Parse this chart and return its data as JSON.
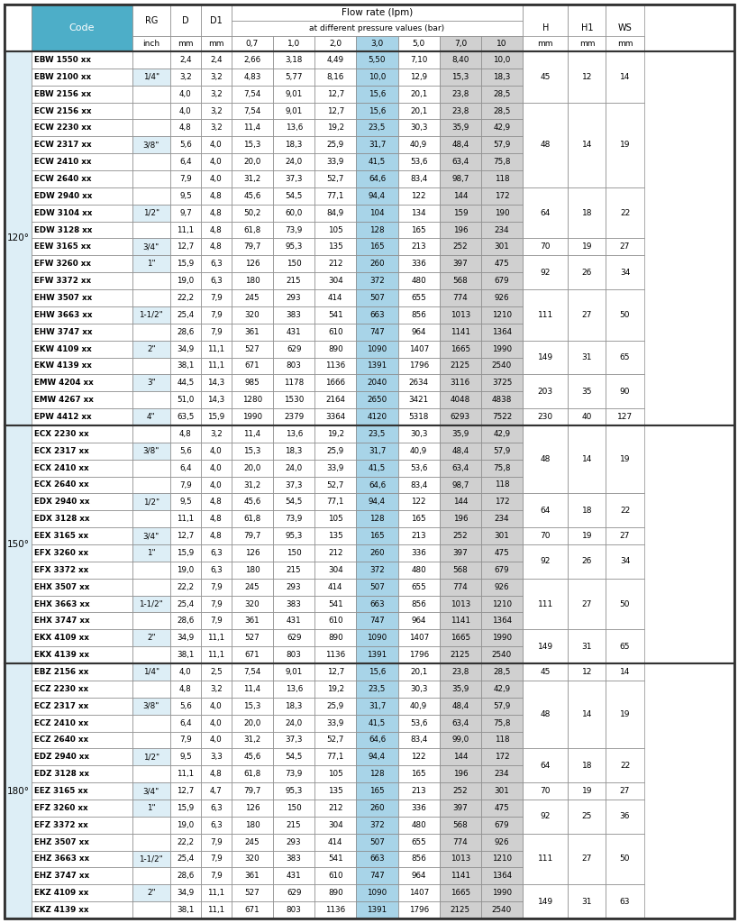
{
  "header_bg": "#4daec8",
  "header_text_color": "#ffffff",
  "blue_col_bg": "#a8d4e8",
  "gray_col_bg": "#d0d0d0",
  "light_blue_bg": "#ddeef6",
  "white": "#ffffff",
  "black": "#000000",
  "border_light": "#aaaaaa",
  "border_dark": "#444444",
  "sections": [
    {
      "angle": "120°",
      "groups": [
        {
          "rg": "1/4\"",
          "H": "45",
          "H1": "12",
          "WS": "14",
          "rows": [
            [
              "EBW 1550 xx",
              "",
              "2,4",
              "2,4",
              "2,66",
              "3,18",
              "4,49",
              "5,50",
              "7,10",
              "8,40",
              "10,0"
            ],
            [
              "EBW 2100 xx",
              "1/4\"",
              "3,2",
              "3,2",
              "4,83",
              "5,77",
              "8,16",
              "10,0",
              "12,9",
              "15,3",
              "18,3"
            ],
            [
              "EBW 2156 xx",
              "",
              "4,0",
              "3,2",
              "7,54",
              "9,01",
              "12,7",
              "15,6",
              "20,1",
              "23,8",
              "28,5"
            ]
          ]
        },
        {
          "rg": "3/8\"",
          "H": "48",
          "H1": "14",
          "WS": "19",
          "rows": [
            [
              "ECW 2156 xx",
              "",
              "4,0",
              "3,2",
              "7,54",
              "9,01",
              "12,7",
              "15,6",
              "20,1",
              "23,8",
              "28,5"
            ],
            [
              "ECW 2230 xx",
              "",
              "4,8",
              "3,2",
              "11,4",
              "13,6",
              "19,2",
              "23,5",
              "30,3",
              "35,9",
              "42,9"
            ],
            [
              "ECW 2317 xx",
              "3/8\"",
              "5,6",
              "4,0",
              "15,3",
              "18,3",
              "25,9",
              "31,7",
              "40,9",
              "48,4",
              "57,9"
            ],
            [
              "ECW 2410 xx",
              "",
              "6,4",
              "4,0",
              "20,0",
              "24,0",
              "33,9",
              "41,5",
              "53,6",
              "63,4",
              "75,8"
            ],
            [
              "ECW 2640 xx",
              "",
              "7,9",
              "4,0",
              "31,2",
              "37,3",
              "52,7",
              "64,6",
              "83,4",
              "98,7",
              "118"
            ]
          ]
        },
        {
          "rg": "1/2\"",
          "H": "64",
          "H1": "18",
          "WS": "22",
          "rows": [
            [
              "EDW 2940 xx",
              "",
              "9,5",
              "4,8",
              "45,6",
              "54,5",
              "77,1",
              "94,4",
              "122",
              "144",
              "172"
            ],
            [
              "EDW 3104 xx",
              "1/2\"",
              "9,7",
              "4,8",
              "50,2",
              "60,0",
              "84,9",
              "104",
              "134",
              "159",
              "190"
            ],
            [
              "EDW 3128 xx",
              "",
              "11,1",
              "4,8",
              "61,8",
              "73,9",
              "105",
              "128",
              "165",
              "196",
              "234"
            ]
          ]
        },
        {
          "rg": "3/4\"",
          "H": "70",
          "H1": "19",
          "WS": "27",
          "rows": [
            [
              "EEW 3165 xx",
              "3/4\"",
              "12,7",
              "4,8",
              "79,7",
              "95,3",
              "135",
              "165",
              "213",
              "252",
              "301"
            ]
          ]
        },
        {
          "rg": "1\"",
          "H": "92",
          "H1": "26",
          "WS": "34",
          "rows": [
            [
              "EFW 3260 xx",
              "1\"",
              "15,9",
              "6,3",
              "126",
              "150",
              "212",
              "260",
              "336",
              "397",
              "475"
            ],
            [
              "EFW 3372 xx",
              "",
              "19,0",
              "6,3",
              "180",
              "215",
              "304",
              "372",
              "480",
              "568",
              "679"
            ]
          ]
        },
        {
          "rg": "1-1/2\"",
          "H": "111",
          "H1": "27",
          "WS": "50",
          "rows": [
            [
              "EHW 3507 xx",
              "",
              "22,2",
              "7,9",
              "245",
              "293",
              "414",
              "507",
              "655",
              "774",
              "926"
            ],
            [
              "EHW 3663 xx",
              "1-1/2\"",
              "25,4",
              "7,9",
              "320",
              "383",
              "541",
              "663",
              "856",
              "1013",
              "1210"
            ],
            [
              "EHW 3747 xx",
              "",
              "28,6",
              "7,9",
              "361",
              "431",
              "610",
              "747",
              "964",
              "1141",
              "1364"
            ]
          ]
        },
        {
          "rg": "2\"",
          "H": "149",
          "H1": "31",
          "WS": "65",
          "rows": [
            [
              "EKW 4109 xx",
              "2\"",
              "34,9",
              "11,1",
              "527",
              "629",
              "890",
              "1090",
              "1407",
              "1665",
              "1990"
            ],
            [
              "EKW 4139 xx",
              "",
              "38,1",
              "11,1",
              "671",
              "803",
              "1136",
              "1391",
              "1796",
              "2125",
              "2540"
            ]
          ]
        },
        {
          "rg": "3\"",
          "H": "203",
          "H1": "35",
          "WS": "90",
          "rows": [
            [
              "EMW 4204 xx",
              "3\"",
              "44,5",
              "14,3",
              "985",
              "1178",
              "1666",
              "2040",
              "2634",
              "3116",
              "3725"
            ],
            [
              "EMW 4267 xx",
              "",
              "51,0",
              "14,3",
              "1280",
              "1530",
              "2164",
              "2650",
              "3421",
              "4048",
              "4838"
            ]
          ]
        },
        {
          "rg": "4\"",
          "H": "230",
          "H1": "40",
          "WS": "127",
          "rows": [
            [
              "EPW 4412 xx",
              "4\"",
              "63,5",
              "15,9",
              "1990",
              "2379",
              "3364",
              "4120",
              "5318",
              "6293",
              "7522"
            ]
          ]
        }
      ]
    },
    {
      "angle": "150°",
      "groups": [
        {
          "rg": "3/8\"",
          "H": "48",
          "H1": "14",
          "WS": "19",
          "rows": [
            [
              "ECX 2230 xx",
              "",
              "4,8",
              "3,2",
              "11,4",
              "13,6",
              "19,2",
              "23,5",
              "30,3",
              "35,9",
              "42,9"
            ],
            [
              "ECX 2317 xx",
              "3/8\"",
              "5,6",
              "4,0",
              "15,3",
              "18,3",
              "25,9",
              "31,7",
              "40,9",
              "48,4",
              "57,9"
            ],
            [
              "ECX 2410 xx",
              "",
              "6,4",
              "4,0",
              "20,0",
              "24,0",
              "33,9",
              "41,5",
              "53,6",
              "63,4",
              "75,8"
            ],
            [
              "ECX 2640 xx",
              "",
              "7,9",
              "4,0",
              "31,2",
              "37,3",
              "52,7",
              "64,6",
              "83,4",
              "98,7",
              "118"
            ]
          ]
        },
        {
          "rg": "1/2\"",
          "H": "64",
          "H1": "18",
          "WS": "22",
          "rows": [
            [
              "EDX 2940 xx",
              "1/2\"",
              "9,5",
              "4,8",
              "45,6",
              "54,5",
              "77,1",
              "94,4",
              "122",
              "144",
              "172"
            ],
            [
              "EDX 3128 xx",
              "",
              "11,1",
              "4,8",
              "61,8",
              "73,9",
              "105",
              "128",
              "165",
              "196",
              "234"
            ]
          ]
        },
        {
          "rg": "3/4\"",
          "H": "70",
          "H1": "19",
          "WS": "27",
          "rows": [
            [
              "EEX 3165 xx",
              "3/4\"",
              "12,7",
              "4,8",
              "79,7",
              "95,3",
              "135",
              "165",
              "213",
              "252",
              "301"
            ]
          ]
        },
        {
          "rg": "1\"",
          "H": "92",
          "H1": "26",
          "WS": "34",
          "rows": [
            [
              "EFX 3260 xx",
              "1\"",
              "15,9",
              "6,3",
              "126",
              "150",
              "212",
              "260",
              "336",
              "397",
              "475"
            ],
            [
              "EFX 3372 xx",
              "",
              "19,0",
              "6,3",
              "180",
              "215",
              "304",
              "372",
              "480",
              "568",
              "679"
            ]
          ]
        },
        {
          "rg": "1-1/2\"",
          "H": "111",
          "H1": "27",
          "WS": "50",
          "rows": [
            [
              "EHX 3507 xx",
              "",
              "22,2",
              "7,9",
              "245",
              "293",
              "414",
              "507",
              "655",
              "774",
              "926"
            ],
            [
              "EHX 3663 xx",
              "1-1/2\"",
              "25,4",
              "7,9",
              "320",
              "383",
              "541",
              "663",
              "856",
              "1013",
              "1210"
            ],
            [
              "EHX 3747 xx",
              "",
              "28,6",
              "7,9",
              "361",
              "431",
              "610",
              "747",
              "964",
              "1141",
              "1364"
            ]
          ]
        },
        {
          "rg": "2\"",
          "H": "149",
          "H1": "31",
          "WS": "65",
          "rows": [
            [
              "EKX 4109 xx",
              "2\"",
              "34,9",
              "11,1",
              "527",
              "629",
              "890",
              "1090",
              "1407",
              "1665",
              "1990"
            ],
            [
              "EKX 4139 xx",
              "",
              "38,1",
              "11,1",
              "671",
              "803",
              "1136",
              "1391",
              "1796",
              "2125",
              "2540"
            ]
          ]
        }
      ]
    },
    {
      "angle": "180°",
      "groups": [
        {
          "rg": "1/4\"",
          "H": "45",
          "H1": "12",
          "WS": "14",
          "rows": [
            [
              "EBZ 2156 xx",
              "1/4\"",
              "4,0",
              "2,5",
              "7,54",
              "9,01",
              "12,7",
              "15,6",
              "20,1",
              "23,8",
              "28,5"
            ]
          ]
        },
        {
          "rg": "3/8\"",
          "H": "48",
          "H1": "14",
          "WS": "19",
          "rows": [
            [
              "ECZ 2230 xx",
              "",
              "4,8",
              "3,2",
              "11,4",
              "13,6",
              "19,2",
              "23,5",
              "30,3",
              "35,9",
              "42,9"
            ],
            [
              "ECZ 2317 xx",
              "3/8\"",
              "5,6",
              "4,0",
              "15,3",
              "18,3",
              "25,9",
              "31,7",
              "40,9",
              "48,4",
              "57,9"
            ],
            [
              "ECZ 2410 xx",
              "",
              "6,4",
              "4,0",
              "20,0",
              "24,0",
              "33,9",
              "41,5",
              "53,6",
              "63,4",
              "75,8"
            ],
            [
              "ECZ 2640 xx",
              "",
              "7,9",
              "4,0",
              "31,2",
              "37,3",
              "52,7",
              "64,6",
              "83,4",
              "99,0",
              "118"
            ]
          ]
        },
        {
          "rg": "1/2\"",
          "H": "64",
          "H1": "18",
          "WS": "22",
          "rows": [
            [
              "EDZ 2940 xx",
              "1/2\"",
              "9,5",
              "3,3",
              "45,6",
              "54,5",
              "77,1",
              "94,4",
              "122",
              "144",
              "172"
            ],
            [
              "EDZ 3128 xx",
              "",
              "11,1",
              "4,8",
              "61,8",
              "73,9",
              "105",
              "128",
              "165",
              "196",
              "234"
            ]
          ]
        },
        {
          "rg": "3/4\"",
          "H": "70",
          "H1": "19",
          "WS": "27",
          "rows": [
            [
              "EEZ 3165 xx",
              "3/4\"",
              "12,7",
              "4,7",
              "79,7",
              "95,3",
              "135",
              "165",
              "213",
              "252",
              "301"
            ]
          ]
        },
        {
          "rg": "1\"",
          "H": "92",
          "H1": "25",
          "WS": "36",
          "rows": [
            [
              "EFZ 3260 xx",
              "1\"",
              "15,9",
              "6,3",
              "126",
              "150",
              "212",
              "260",
              "336",
              "397",
              "475"
            ],
            [
              "EFZ 3372 xx",
              "",
              "19,0",
              "6,3",
              "180",
              "215",
              "304",
              "372",
              "480",
              "568",
              "679"
            ]
          ]
        },
        {
          "rg": "1-1/2\"",
          "H": "111",
          "H1": "27",
          "WS": "50",
          "rows": [
            [
              "EHZ 3507 xx",
              "",
              "22,2",
              "7,9",
              "245",
              "293",
              "414",
              "507",
              "655",
              "774",
              "926"
            ],
            [
              "EHZ 3663 xx",
              "1-1/2\"",
              "25,4",
              "7,9",
              "320",
              "383",
              "541",
              "663",
              "856",
              "1013",
              "1210"
            ],
            [
              "EHZ 3747 xx",
              "",
              "28,6",
              "7,9",
              "361",
              "431",
              "610",
              "747",
              "964",
              "1141",
              "1364"
            ]
          ]
        },
        {
          "rg": "2\"",
          "H": "149",
          "H1": "31",
          "WS": "63",
          "rows": [
            [
              "EKZ 4109 xx",
              "2\"",
              "34,9",
              "11,1",
              "527",
              "629",
              "890",
              "1090",
              "1407",
              "1665",
              "1990"
            ],
            [
              "EKZ 4139 xx",
              "",
              "38,1",
              "11,1",
              "671",
              "803",
              "1136",
              "1391",
              "1796",
              "2125",
              "2540"
            ]
          ]
        }
      ]
    }
  ]
}
